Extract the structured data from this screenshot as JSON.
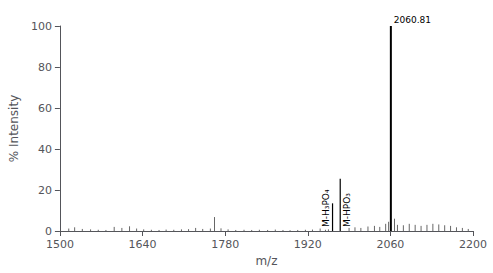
{
  "chart_data": {
    "type": "stem",
    "xlabel": "m/z",
    "ylabel": "% Intensity",
    "xlim": [
      1500,
      2200
    ],
    "ylim": [
      0,
      100
    ],
    "xticks": [
      1500,
      1640,
      1780,
      1920,
      2060,
      2200
    ],
    "yticks": [
      0,
      20,
      40,
      60,
      80,
      100
    ],
    "grid": false,
    "color": "#000000",
    "series": [
      {
        "x": [
          1515,
          1525,
          1538,
          1552,
          1565,
          1578,
          1592,
          1605,
          1618,
          1630,
          1642,
          1655,
          1668,
          1680,
          1693,
          1706,
          1718,
          1730,
          1742,
          1755,
          1762,
          1773,
          1785,
          1798,
          1812,
          1825,
          1838,
          1852,
          1865,
          1878,
          1890,
          1903,
          1916,
          1928,
          1941,
          1950,
          1955,
          1990,
          2000,
          2010,
          2022,
          2033,
          2042,
          2052,
          2057,
          2067,
          2072,
          2082,
          2092,
          2102,
          2112,
          2122,
          2132,
          2142,
          2152,
          2162,
          2172,
          2182,
          2192
        ],
        "values": [
          1.2,
          1.8,
          1.0,
          0.8,
          0.6,
          0.5,
          2.0,
          1.5,
          2.3,
          1.2,
          0.8,
          0.6,
          0.5,
          0.7,
          0.6,
          0.8,
          0.9,
          1.5,
          1.0,
          1.2,
          6.8,
          1.3,
          0.8,
          0.5,
          0.6,
          0.5,
          0.6,
          0.5,
          0.7,
          0.5,
          0.4,
          0.5,
          0.6,
          0.7,
          1.2,
          0.6,
          0.8,
          1.5,
          1.8,
          1.5,
          2.2,
          2.5,
          2.0,
          3.5,
          4.5,
          6.0,
          3.0,
          2.8,
          3.5,
          3.0,
          2.5,
          3.0,
          3.5,
          3.2,
          2.8,
          2.5,
          1.8,
          1.5,
          1.0
        ]
      },
      {
        "x": [
          1962.0,
          1975.0
        ],
        "values": [
          13.5,
          25.5
        ]
      },
      {
        "x": [
          2060.81
        ],
        "values": [
          100
        ]
      }
    ],
    "annotations": [
      {
        "x": 1962.0,
        "y": 13.5,
        "text": "M-H₃PO₄"
      },
      {
        "x": 1975.0,
        "y": 25.5,
        "text": "M-HPO₃"
      },
      {
        "x": 2060.81,
        "y": 100,
        "text": "2060.81"
      }
    ]
  }
}
